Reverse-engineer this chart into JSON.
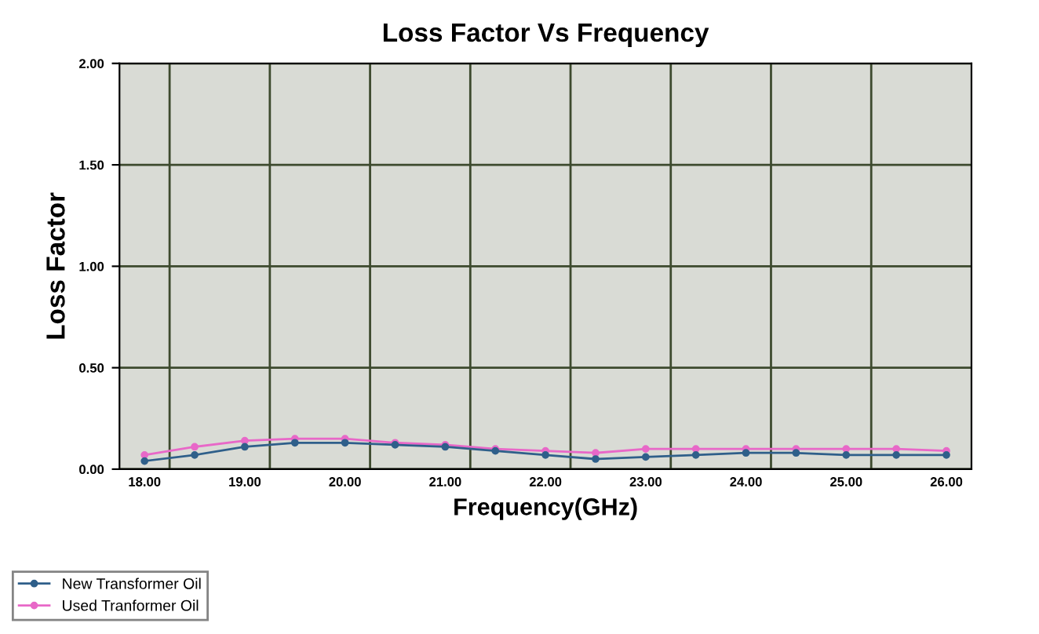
{
  "chart_data": {
    "type": "line",
    "title": "Loss Factor Vs Frequency",
    "xlabel": "Frequency(GHz)",
    "ylabel": "Loss Factor",
    "categories": [
      "18.00",
      null,
      "19.00",
      null,
      "20.00",
      null,
      "21.00",
      null,
      "22.00",
      null,
      "23.00",
      null,
      "24.00",
      null,
      "25.00",
      null,
      "26.00"
    ],
    "series": [
      {
        "name": "New Transformer Oil",
        "color": "#2f5f8a",
        "values": [
          0.04,
          0.07,
          0.11,
          0.13,
          0.13,
          0.12,
          0.11,
          0.09,
          0.07,
          0.05,
          0.06,
          0.07,
          0.08,
          0.08,
          0.07,
          0.07,
          0.07
        ]
      },
      {
        "name": "Used Tranformer Oil",
        "color": "#e868c8",
        "values": [
          0.07,
          0.11,
          0.14,
          0.15,
          0.15,
          0.13,
          0.12,
          0.1,
          0.09,
          0.08,
          0.1,
          0.1,
          0.1,
          0.1,
          0.1,
          0.1,
          0.09
        ]
      }
    ],
    "ylim": [
      0,
      2
    ],
    "yticks": [
      {
        "value": 0,
        "label": "0.00"
      },
      {
        "value": 0.5,
        "label": "0.50"
      },
      {
        "value": 1,
        "label": "1.00"
      },
      {
        "value": 1.5,
        "label": "1.50"
      },
      {
        "value": 2,
        "label": "2.00"
      }
    ],
    "grid": true,
    "legend": "bottom left",
    "marker": "circle",
    "line_style": "solid"
  }
}
